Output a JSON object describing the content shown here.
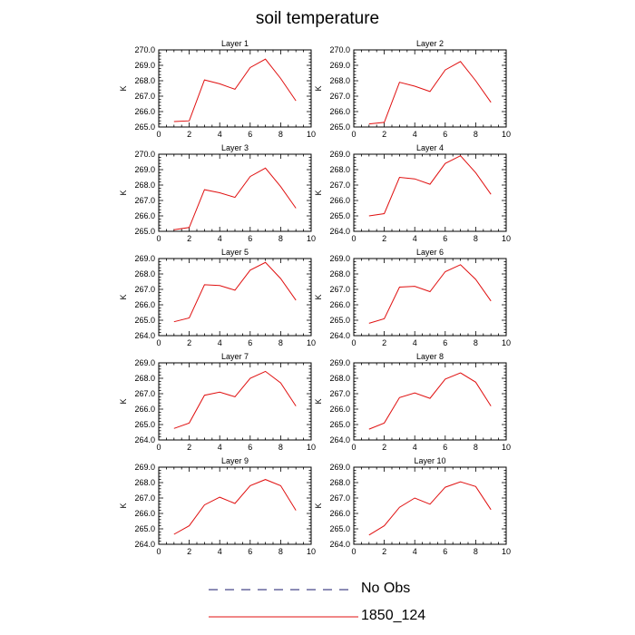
{
  "page": {
    "title": "soil temperature"
  },
  "legend": [
    {
      "name": "No Obs",
      "color": "#1a1a6e",
      "style": "dashed"
    },
    {
      "name": "1850_124",
      "color": "#e01010",
      "style": "solid"
    }
  ],
  "chart_data": [
    {
      "type": "line",
      "title": "Layer 1",
      "ylabel": "K",
      "xlim": [
        0,
        10
      ],
      "ylim": [
        265.0,
        270.0
      ],
      "xticks": [
        0,
        2,
        4,
        6,
        8,
        10
      ],
      "yticks": [
        265.0,
        266.0,
        267.0,
        268.0,
        269.0,
        270.0
      ],
      "series": [
        {
          "name": "1850_124",
          "color": "#e01010",
          "x": [
            1,
            2,
            3,
            4,
            5,
            6,
            7,
            8,
            9
          ],
          "y": [
            265.35,
            265.4,
            268.05,
            267.8,
            267.45,
            268.85,
            269.4,
            268.15,
            266.7
          ]
        }
      ]
    },
    {
      "type": "line",
      "title": "Layer 2",
      "ylabel": "K",
      "xlim": [
        0,
        10
      ],
      "ylim": [
        265.0,
        270.0
      ],
      "xticks": [
        0,
        2,
        4,
        6,
        8,
        10
      ],
      "yticks": [
        265.0,
        266.0,
        267.0,
        268.0,
        269.0,
        270.0
      ],
      "series": [
        {
          "name": "1850_124",
          "color": "#e01010",
          "x": [
            1,
            2,
            3,
            4,
            5,
            6,
            7,
            8,
            9
          ],
          "y": [
            265.2,
            265.3,
            267.9,
            267.65,
            267.3,
            268.7,
            269.25,
            268.0,
            266.6
          ]
        }
      ]
    },
    {
      "type": "line",
      "title": "Layer 3",
      "ylabel": "K",
      "xlim": [
        0,
        10
      ],
      "ylim": [
        265.0,
        270.0
      ],
      "xticks": [
        0,
        2,
        4,
        6,
        8,
        10
      ],
      "yticks": [
        265.0,
        266.0,
        267.0,
        268.0,
        269.0,
        270.0
      ],
      "series": [
        {
          "name": "1850_124",
          "color": "#e01010",
          "x": [
            1,
            2,
            3,
            4,
            5,
            6,
            7,
            8,
            9
          ],
          "y": [
            265.1,
            265.25,
            267.7,
            267.5,
            267.2,
            268.55,
            269.1,
            267.9,
            266.5
          ]
        }
      ]
    },
    {
      "type": "line",
      "title": "Layer 4",
      "ylabel": "K",
      "xlim": [
        0,
        10
      ],
      "ylim": [
        264.0,
        269.0
      ],
      "xticks": [
        0,
        2,
        4,
        6,
        8,
        10
      ],
      "yticks": [
        264.0,
        265.0,
        266.0,
        267.0,
        268.0,
        269.0
      ],
      "series": [
        {
          "name": "1850_124",
          "color": "#e01010",
          "x": [
            1,
            2,
            3,
            4,
            5,
            6,
            7,
            8,
            9
          ],
          "y": [
            265.0,
            265.15,
            267.5,
            267.4,
            267.05,
            268.4,
            268.9,
            267.8,
            266.4
          ]
        }
      ]
    },
    {
      "type": "line",
      "title": "Layer 5",
      "ylabel": "K",
      "xlim": [
        0,
        10
      ],
      "ylim": [
        264.0,
        269.0
      ],
      "xticks": [
        0,
        2,
        4,
        6,
        8,
        10
      ],
      "yticks": [
        264.0,
        265.0,
        266.0,
        267.0,
        268.0,
        269.0
      ],
      "series": [
        {
          "name": "1850_124",
          "color": "#e01010",
          "x": [
            1,
            2,
            3,
            4,
            5,
            6,
            7,
            8,
            9
          ],
          "y": [
            264.9,
            265.15,
            267.3,
            267.25,
            266.95,
            268.25,
            268.75,
            267.7,
            266.3
          ]
        }
      ]
    },
    {
      "type": "line",
      "title": "Layer 6",
      "ylabel": "K",
      "xlim": [
        0,
        10
      ],
      "ylim": [
        264.0,
        269.0
      ],
      "xticks": [
        0,
        2,
        4,
        6,
        8,
        10
      ],
      "yticks": [
        264.0,
        265.0,
        266.0,
        267.0,
        268.0,
        269.0
      ],
      "series": [
        {
          "name": "1850_124",
          "color": "#e01010",
          "x": [
            1,
            2,
            3,
            4,
            5,
            6,
            7,
            8,
            9
          ],
          "y": [
            264.8,
            265.1,
            267.15,
            267.2,
            266.85,
            268.15,
            268.6,
            267.65,
            266.25
          ]
        }
      ]
    },
    {
      "type": "line",
      "title": "Layer 7",
      "ylabel": "K",
      "xlim": [
        0,
        10
      ],
      "ylim": [
        264.0,
        269.0
      ],
      "xticks": [
        0,
        2,
        4,
        6,
        8,
        10
      ],
      "yticks": [
        264.0,
        265.0,
        266.0,
        267.0,
        268.0,
        269.0
      ],
      "series": [
        {
          "name": "1850_124",
          "color": "#e01010",
          "x": [
            1,
            2,
            3,
            4,
            5,
            6,
            7,
            8,
            9
          ],
          "y": [
            264.75,
            265.1,
            266.9,
            267.1,
            266.8,
            268.0,
            268.45,
            267.7,
            266.2
          ]
        }
      ]
    },
    {
      "type": "line",
      "title": "Layer 8",
      "ylabel": "K",
      "xlim": [
        0,
        10
      ],
      "ylim": [
        264.0,
        269.0
      ],
      "xticks": [
        0,
        2,
        4,
        6,
        8,
        10
      ],
      "yticks": [
        264.0,
        265.0,
        266.0,
        267.0,
        268.0,
        269.0
      ],
      "series": [
        {
          "name": "1850_124",
          "color": "#e01010",
          "x": [
            1,
            2,
            3,
            4,
            5,
            6,
            7,
            8,
            9
          ],
          "y": [
            264.7,
            265.1,
            266.75,
            267.05,
            266.7,
            267.95,
            268.35,
            267.75,
            266.2
          ]
        }
      ]
    },
    {
      "type": "line",
      "title": "Layer 9",
      "ylabel": "K",
      "xlim": [
        0,
        10
      ],
      "ylim": [
        264.0,
        269.0
      ],
      "xticks": [
        0,
        2,
        4,
        6,
        8,
        10
      ],
      "yticks": [
        264.0,
        265.0,
        266.0,
        267.0,
        268.0,
        269.0
      ],
      "series": [
        {
          "name": "1850_124",
          "color": "#e01010",
          "x": [
            1,
            2,
            3,
            4,
            5,
            6,
            7,
            8,
            9
          ],
          "y": [
            264.65,
            265.2,
            266.55,
            267.05,
            266.65,
            267.8,
            268.2,
            267.8,
            266.2
          ]
        }
      ]
    },
    {
      "type": "line",
      "title": "Layer 10",
      "ylabel": "K",
      "xlim": [
        0,
        10
      ],
      "ylim": [
        264.0,
        269.0
      ],
      "xticks": [
        0,
        2,
        4,
        6,
        8,
        10
      ],
      "yticks": [
        264.0,
        265.0,
        266.0,
        267.0,
        268.0,
        269.0
      ],
      "series": [
        {
          "name": "1850_124",
          "color": "#e01010",
          "x": [
            1,
            2,
            3,
            4,
            5,
            6,
            7,
            8,
            9
          ],
          "y": [
            264.6,
            265.2,
            266.4,
            267.0,
            266.6,
            267.7,
            268.05,
            267.75,
            266.25
          ]
        }
      ]
    }
  ]
}
